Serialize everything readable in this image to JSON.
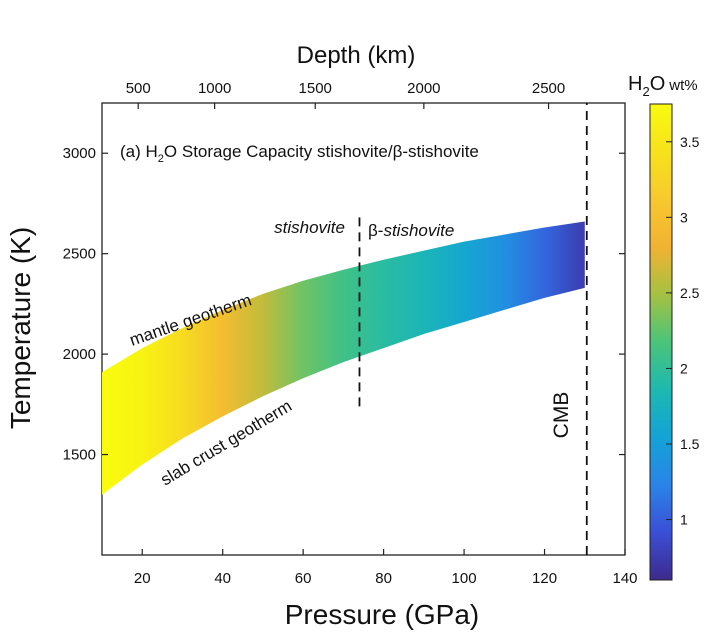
{
  "chart_data": {
    "type": "heatmap",
    "title": "(a) H2O Storage Capacity stishovite/β-stishovite",
    "title_parts": {
      "prefix": "(a) H",
      "sub": "2",
      "suffix": "O Storage Capacity stishovite/β-stishovite"
    },
    "xlabel": "Pressure (GPa)",
    "ylabel": "Temperature (K)",
    "top_xlabel": "Depth (km)",
    "xlim": [
      10,
      140
    ],
    "ylim": [
      1000,
      3250
    ],
    "xticks": [
      20,
      40,
      60,
      80,
      100,
      120,
      140
    ],
    "yticks": [
      1500,
      2000,
      2500,
      3000
    ],
    "top_ticks": [
      {
        "label": "500",
        "pressure": 19
      },
      {
        "label": "1000",
        "pressure": 38
      },
      {
        "label": "1500",
        "pressure": 63
      },
      {
        "label": "2000",
        "pressure": 90
      },
      {
        "label": "2500",
        "pressure": 121
      }
    ],
    "colorbar": {
      "title_prefix": "H",
      "title_sub": "2",
      "title_suffix": "O",
      "title_unit": "wt%",
      "range": [
        0.6,
        3.75
      ],
      "ticks": [
        "1",
        "1.5",
        "2",
        "2.5",
        "3",
        "3.5"
      ],
      "colormap": [
        "#3e2a8c",
        "#3a4fd6",
        "#2a84e8",
        "#13a3d6",
        "#1db9b0",
        "#4bc47a",
        "#a6c142",
        "#f2b232",
        "#f7c92e",
        "#f7e21c",
        "#f9fb0e"
      ]
    },
    "mantle_geotherm": {
      "x": [
        10,
        20,
        30,
        40,
        50,
        60,
        70,
        80,
        90,
        100,
        110,
        120,
        130
      ],
      "y": [
        1910,
        2030,
        2130,
        2220,
        2300,
        2365,
        2420,
        2470,
        2515,
        2560,
        2595,
        2630,
        2660
      ]
    },
    "slab_crust_geotherm": {
      "x": [
        10,
        20,
        30,
        40,
        50,
        60,
        70,
        80,
        90,
        100,
        110,
        120,
        130
      ],
      "y": [
        1300,
        1450,
        1580,
        1690,
        1790,
        1880,
        1960,
        2030,
        2100,
        2160,
        2220,
        2280,
        2330
      ]
    },
    "h2o_wt_pct": {
      "x": [
        10,
        20,
        30,
        40,
        50,
        60,
        70,
        80,
        90,
        100,
        110,
        120,
        130
      ],
      "values": [
        3.75,
        3.65,
        3.35,
        2.95,
        2.6,
        2.3,
        2.1,
        1.95,
        1.8,
        1.6,
        1.35,
        1.05,
        0.75
      ]
    },
    "phase_boundary": {
      "x": 74,
      "y_range": [
        1740,
        2690
      ]
    },
    "cmb": {
      "x": 130.5,
      "y_range": [
        1000,
        3250
      ]
    },
    "annotations": {
      "stishovite": "stishovite",
      "beta_stishovite_prefix": "β-",
      "beta_stishovite_suffix": "stishovite",
      "mantle_geotherm": "mantle geotherm",
      "slab_crust_geotherm": "slab crust geotherm",
      "cmb": "CMB"
    }
  }
}
